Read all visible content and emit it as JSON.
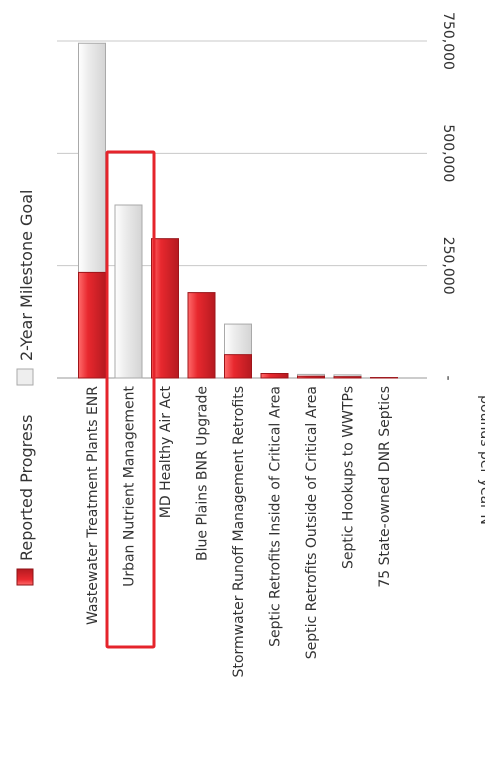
{
  "chart_data": {
    "type": "bar",
    "orientation": "vertical (rotated 90° clockwise)",
    "categories": [
      "Wastewater Treatment Plants ENR",
      "Urban Nutrient Management",
      "MD Healthy Air Act",
      "Blue Plains BNR Upgrade",
      "Stormwater Runoff Management Retrofits",
      "Septic Retrofits Inside of Critical Area",
      "Septic Retrofits Outside of Critical Area",
      "Septic Hookups to WWTPs",
      "75 State-owned DNR Septics"
    ],
    "series": [
      {
        "name": "Reported Progress",
        "values": [
          235000,
          0,
          310000,
          190000,
          52000,
          10000,
          4000,
          3000,
          1000
        ]
      },
      {
        "name": "2-Year Milestone Goal",
        "values": [
          745000,
          385000,
          310000,
          190000,
          120000,
          10000,
          8000,
          7000,
          1000
        ]
      }
    ],
    "ylim": [
      0,
      750000
    ],
    "yticks": [
      0,
      250000,
      500000,
      750000
    ],
    "ytick_labels": [
      "-",
      "250,000",
      "500,000",
      "750,000"
    ],
    "ylabel": "pounds per year N",
    "legend_position": "left",
    "grid": true,
    "highlighted_category": "Urban Nutrient Management",
    "colors": {
      "progress": "#e8282e",
      "progress_dark": "#b51a20",
      "goal": "#e6e6e6",
      "goal_border": "#a9a9a9",
      "highlight": "#e5242b",
      "grid": "#c8c8c8"
    }
  }
}
